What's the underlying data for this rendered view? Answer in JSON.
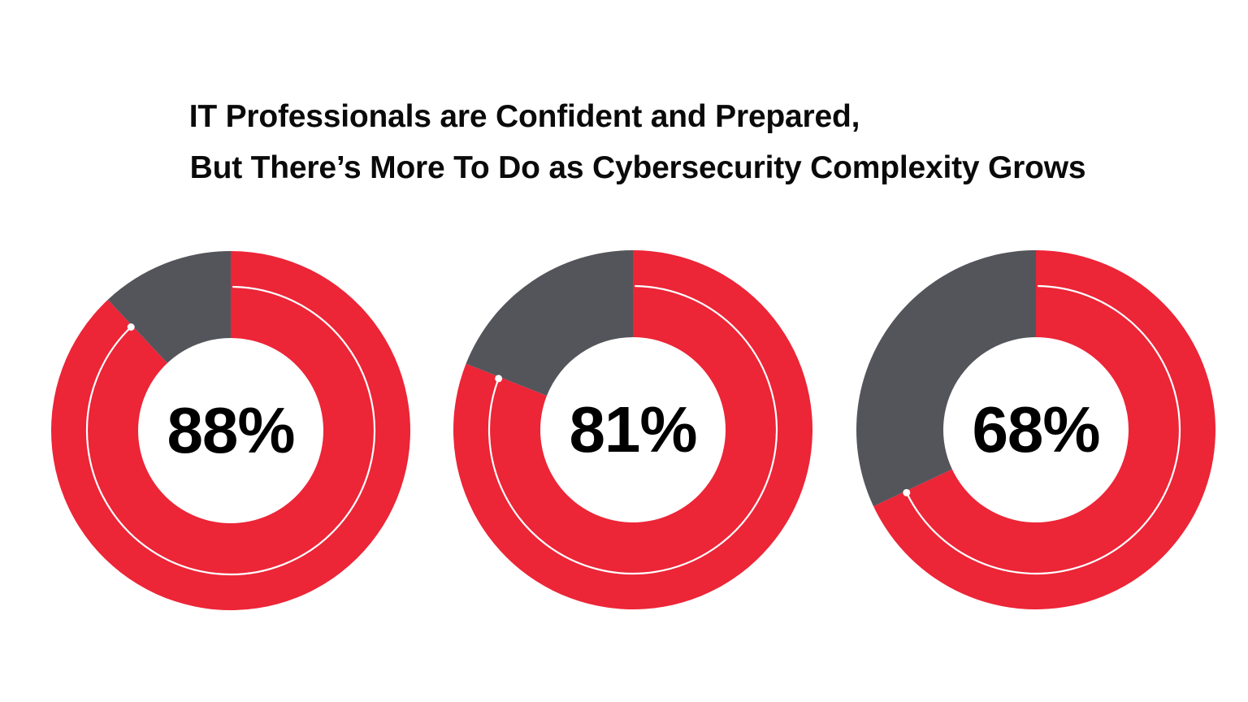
{
  "title": {
    "line1": "IT Professionals are Confident and Prepared,",
    "line2": "But There’s More To Do as Cybersecurity Complexity Grows"
  },
  "colors": {
    "primary": "#EC2537",
    "remainder": "#54555B",
    "indicator_line": "#FFFFFF",
    "text": "#000000",
    "background": "#FFFFFF"
  },
  "chart_data": {
    "type": "pie",
    "subtype": "donut",
    "title": "IT Professionals are Confident and Prepared, But There’s More To Do as Cybersecurity Complexity Grows",
    "xlabel": "",
    "ylabel": "",
    "legend": "none",
    "grid": false,
    "charts": [
      {
        "label": "88%",
        "series": [
          {
            "name": "share",
            "value": 88,
            "color": "#EC2537"
          },
          {
            "name": "remainder",
            "value": 12,
            "color": "#54555B"
          }
        ]
      },
      {
        "label": "81%",
        "series": [
          {
            "name": "share",
            "value": 81,
            "color": "#EC2537"
          },
          {
            "name": "remainder",
            "value": 19,
            "color": "#54555B"
          }
        ]
      },
      {
        "label": "68%",
        "series": [
          {
            "name": "share",
            "value": 68,
            "color": "#EC2537"
          },
          {
            "name": "remainder",
            "value": 32,
            "color": "#54555B"
          }
        ]
      }
    ]
  },
  "donuts": [
    {
      "value": 88,
      "label": "88%"
    },
    {
      "value": 81,
      "label": "81%"
    },
    {
      "value": 68,
      "label": "68%"
    }
  ]
}
